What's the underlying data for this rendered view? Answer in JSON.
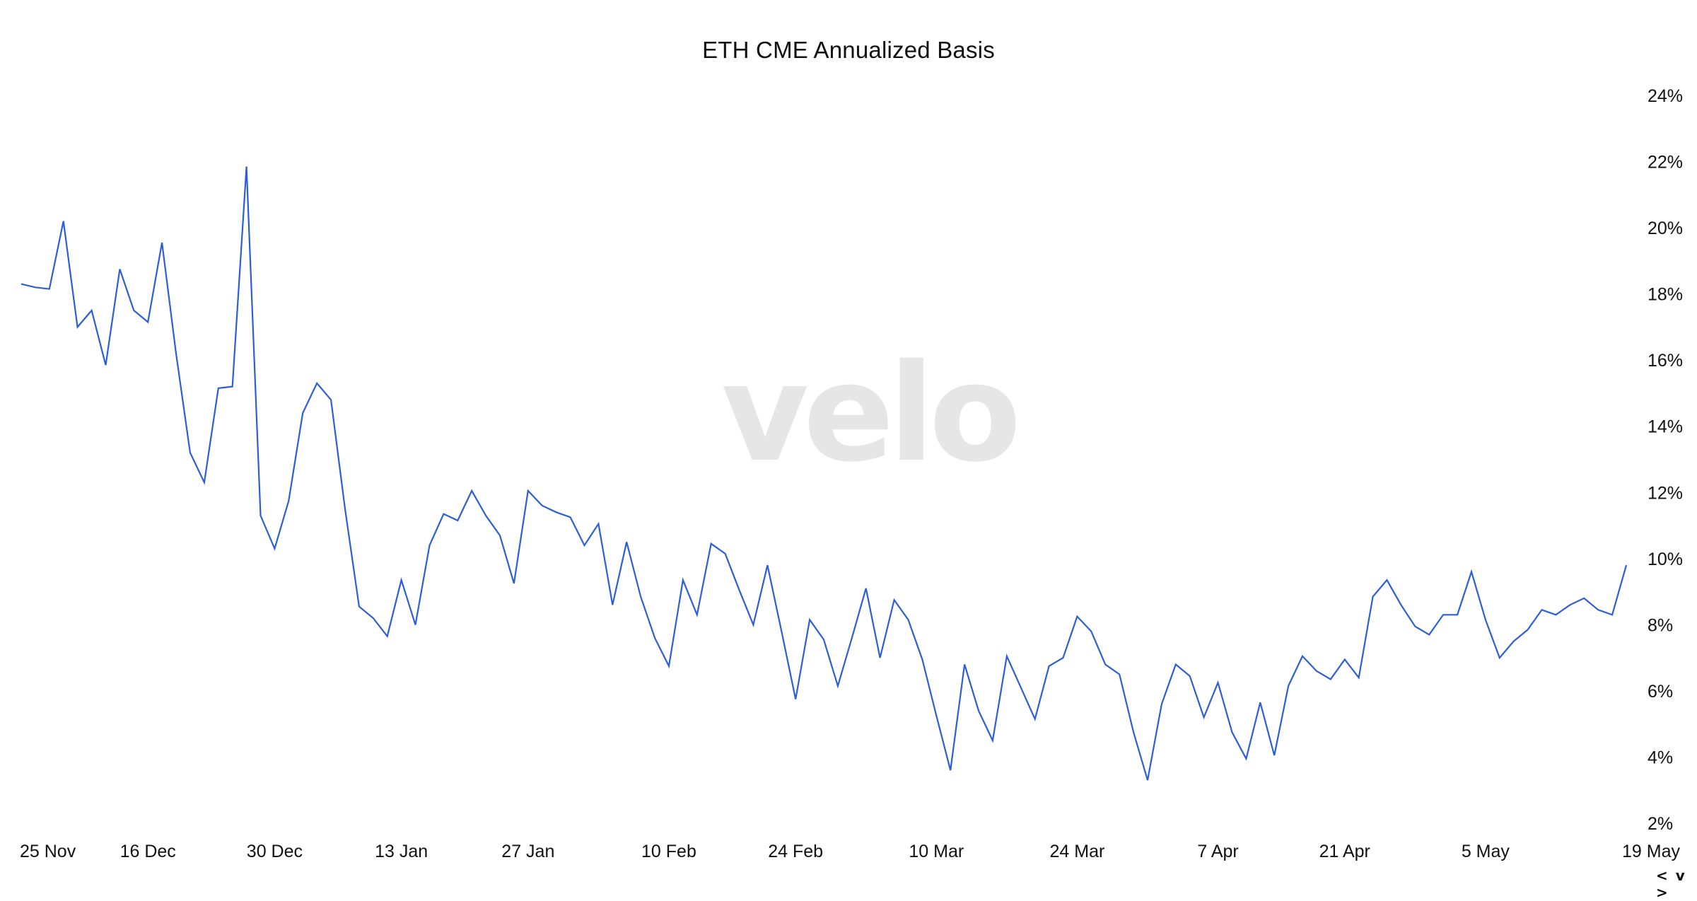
{
  "chart_data": {
    "type": "line",
    "title": "ETH CME Annualized Basis",
    "watermark": "velo",
    "xlabel": "",
    "ylabel": "",
    "ylim": [
      2,
      24
    ],
    "y_ticks": [
      2,
      4,
      6,
      8,
      10,
      12,
      14,
      16,
      18,
      20,
      22,
      24
    ],
    "y_tick_suffix": "%",
    "y_axis_side": "right",
    "grid": false,
    "legend": "none",
    "line_color": "#2c5ed8",
    "x_tick_labels": [
      "25 Nov",
      "16 Dec",
      "30 Dec",
      "13 Jan",
      "27 Jan",
      "10 Feb",
      "24 Feb",
      "10 Mar",
      "24 Mar",
      "7 Apr",
      "21 Apr",
      "5 May",
      "19 May"
    ],
    "x_tick_index": [
      2,
      9,
      18,
      27,
      36,
      46,
      55,
      65,
      75,
      85,
      94,
      104,
      114
    ],
    "series": [
      {
        "values": [
          18.3,
          18.2,
          18.15,
          20.2,
          17.0,
          17.5,
          15.85,
          18.75,
          17.5,
          17.15,
          19.55,
          16.2,
          13.2,
          12.3,
          15.15,
          15.2,
          21.85,
          11.3,
          10.3,
          11.75,
          14.4,
          15.3,
          14.8,
          11.5,
          8.55,
          8.2,
          7.65,
          9.35,
          8.0,
          10.4,
          11.35,
          11.15,
          12.05,
          11.3,
          10.7,
          9.25,
          12.05,
          11.6,
          11.4,
          11.25,
          10.4,
          11.05,
          8.6,
          10.5,
          8.85,
          7.6,
          6.75,
          9.35,
          8.3,
          10.45,
          10.15,
          9.05,
          8.0,
          9.8,
          7.8,
          5.75,
          8.15,
          7.55,
          6.15,
          7.6,
          9.1,
          7.0,
          8.75,
          8.15,
          6.95,
          5.25,
          3.6,
          6.8,
          5.4,
          4.5,
          7.05,
          6.1,
          5.15,
          6.75,
          7.0,
          8.25,
          7.8,
          6.8,
          6.5,
          4.75,
          3.3,
          5.6,
          6.8,
          6.45,
          5.2,
          6.25,
          4.75,
          3.95,
          5.65,
          4.05,
          6.15,
          7.05,
          6.6,
          6.35,
          6.95,
          6.4,
          8.85,
          9.35,
          8.6,
          7.95,
          7.7,
          8.3,
          8.3,
          9.6,
          8.15,
          7.0,
          7.5,
          7.85,
          8.45,
          8.3,
          8.6,
          8.8,
          8.45,
          8.3,
          9.8
        ]
      }
    ]
  },
  "ui": {
    "nav_control_label": "< v >"
  }
}
